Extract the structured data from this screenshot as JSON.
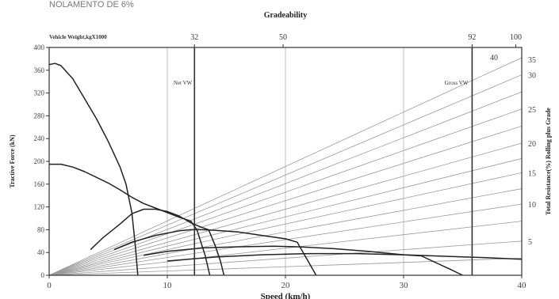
{
  "chart_data": {
    "type": "line",
    "header_text": "NOLAMENTO DE 6%",
    "title": "Gradeability",
    "xlabel": "Speed (km/h)",
    "ylabel": "Tractive Force (kN)",
    "y2label": "Total Resistance(%) Rolling plus Grade",
    "top_axis_label": "Vehicle Weight,kgX1000",
    "xlim": [
      0,
      40
    ],
    "ylim": [
      0,
      400
    ],
    "x_ticks": [
      "0",
      "10",
      "20",
      "30",
      "40"
    ],
    "y_ticks": [
      "0",
      "40",
      "80",
      "120",
      "160",
      "200",
      "240",
      "280",
      "320",
      "360",
      "400"
    ],
    "right_ticks": [
      "5",
      "10",
      "15",
      "20",
      "25",
      "30",
      "35",
      "40"
    ],
    "top_ticks": [
      {
        "label": "32",
        "x": 12.3
      },
      {
        "label": "50",
        "x": 19.8
      },
      {
        "label": "92",
        "x": 35.8
      },
      {
        "label": "100",
        "x": 39.5
      }
    ],
    "markers": [
      {
        "label": "Net VW",
        "x": 12.3
      },
      {
        "label": "Gross VW",
        "x": 35.8
      }
    ],
    "grid_x": [
      10,
      20,
      30
    ],
    "grade_line_ends": [
      30,
      60,
      95,
      125,
      152,
      180,
      205,
      232,
      262,
      292,
      322,
      352,
      382
    ],
    "tractive_curves": [
      {
        "name": "",
        "points": [
          [
            0,
            370
          ],
          [
            0.5,
            372
          ],
          [
            1,
            368
          ],
          [
            2,
            345
          ],
          [
            3,
            310
          ],
          [
            4,
            275
          ],
          [
            5,
            235
          ],
          [
            6,
            190
          ],
          [
            6.5,
            160
          ],
          [
            7,
            110
          ],
          [
            7.3,
            50
          ],
          [
            7.5,
            0
          ]
        ]
      },
      {
        "name": "",
        "points": [
          [
            0,
            195
          ],
          [
            1,
            195
          ],
          [
            2,
            190
          ],
          [
            3,
            182
          ],
          [
            4,
            172
          ],
          [
            5,
            162
          ],
          [
            6,
            150
          ],
          [
            7,
            137
          ],
          [
            8,
            126
          ],
          [
            9,
            118
          ],
          [
            10,
            110
          ],
          [
            11,
            102
          ],
          [
            12,
            95
          ],
          [
            12.5,
            80
          ],
          [
            13.2,
            35
          ],
          [
            13.6,
            0
          ]
        ]
      },
      {
        "name": "",
        "points": [
          [
            3.5,
            45
          ],
          [
            4.5,
            65
          ],
          [
            6,
            90
          ],
          [
            7,
            108
          ],
          [
            8,
            116
          ],
          [
            9,
            116
          ],
          [
            10,
            112
          ],
          [
            11,
            104
          ],
          [
            11.5,
            98
          ],
          [
            12,
            92
          ],
          [
            12.8,
            85
          ],
          [
            13.5,
            80
          ],
          [
            14,
            55
          ],
          [
            14.5,
            25
          ],
          [
            14.8,
            0
          ]
        ]
      },
      {
        "name": "",
        "points": [
          [
            5.5,
            45
          ],
          [
            7,
            58
          ],
          [
            9,
            70
          ],
          [
            11,
            78
          ],
          [
            12,
            80
          ],
          [
            13,
            80
          ],
          [
            14,
            79
          ],
          [
            16,
            76
          ],
          [
            18,
            70
          ],
          [
            20,
            64
          ],
          [
            21,
            58
          ],
          [
            22.6,
            0
          ]
        ]
      },
      {
        "name": "",
        "points": [
          [
            8,
            35
          ],
          [
            10,
            42
          ],
          [
            13,
            48
          ],
          [
            16,
            50
          ],
          [
            19,
            51
          ],
          [
            21,
            50
          ],
          [
            24,
            47
          ],
          [
            27,
            42
          ],
          [
            30,
            36
          ],
          [
            31.5,
            34
          ],
          [
            34,
            10
          ],
          [
            35,
            0
          ]
        ]
      },
      {
        "name": "",
        "points": [
          [
            10,
            25
          ],
          [
            14,
            32
          ],
          [
            18,
            36
          ],
          [
            22,
            38
          ],
          [
            26,
            38
          ],
          [
            30,
            36
          ],
          [
            34,
            33
          ],
          [
            37,
            31
          ],
          [
            40,
            28
          ]
        ]
      }
    ]
  }
}
